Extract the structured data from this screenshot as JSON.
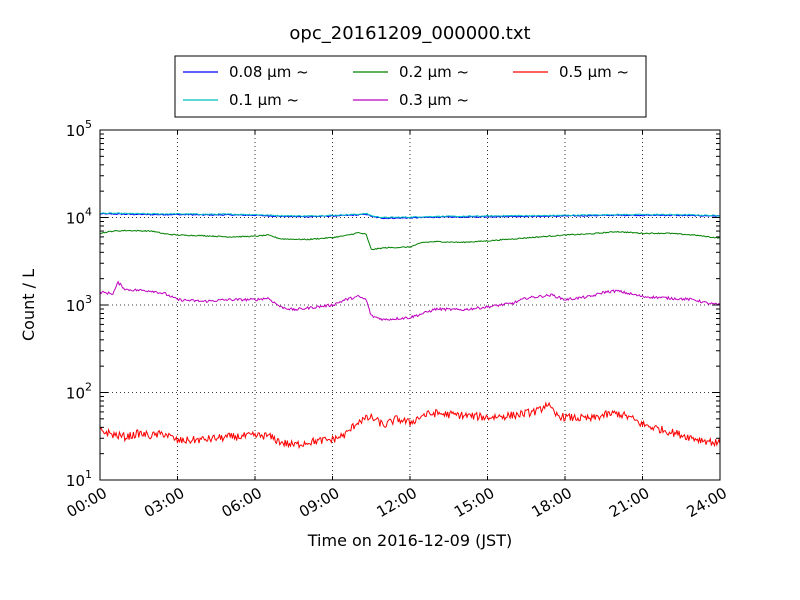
{
  "chart_data": {
    "type": "line",
    "title": "opc_20161209_000000.txt",
    "xlabel": "Time on 2016-12-09 (JST)",
    "ylabel": "Count / L",
    "xlim": [
      0,
      24
    ],
    "ylim": [
      10,
      100000
    ],
    "yscale": "log",
    "grid": true,
    "legend_position": "top-center",
    "x_tick_labels": [
      "00:00",
      "03:00",
      "06:00",
      "09:00",
      "12:00",
      "15:00",
      "18:00",
      "21:00",
      "24:00"
    ],
    "y_tick_labels": [
      {
        "base": "10",
        "exp": "1"
      },
      {
        "base": "10",
        "exp": "2"
      },
      {
        "base": "10",
        "exp": "3"
      },
      {
        "base": "10",
        "exp": "4"
      },
      {
        "base": "10",
        "exp": "5"
      }
    ],
    "series": [
      {
        "name": "0.08 μm ~",
        "color": "#0000ff",
        "points": [
          [
            0,
            11000
          ],
          [
            1,
            10900
          ],
          [
            2,
            10800
          ],
          [
            3,
            10800
          ],
          [
            4,
            10700
          ],
          [
            5,
            10700
          ],
          [
            6,
            10600
          ],
          [
            7,
            10300
          ],
          [
            8,
            10200
          ],
          [
            9,
            10400
          ],
          [
            10,
            10700
          ],
          [
            10.3,
            10900
          ],
          [
            10.6,
            10100
          ],
          [
            11,
            9800
          ],
          [
            12,
            9900
          ],
          [
            13,
            10100
          ],
          [
            14,
            10100
          ],
          [
            15,
            10200
          ],
          [
            16,
            10300
          ],
          [
            17,
            10300
          ],
          [
            18,
            10400
          ],
          [
            19,
            10500
          ],
          [
            20,
            10600
          ],
          [
            21,
            10600
          ],
          [
            22,
            10600
          ],
          [
            23,
            10500
          ],
          [
            24,
            10400
          ]
        ]
      },
      {
        "name": "0.1 μm ~",
        "color": "#00bfbf",
        "points": [
          [
            0,
            11200
          ],
          [
            1,
            11100
          ],
          [
            2,
            11000
          ],
          [
            3,
            11000
          ],
          [
            4,
            10900
          ],
          [
            5,
            10900
          ],
          [
            6,
            10800
          ],
          [
            7,
            10500
          ],
          [
            8,
            10400
          ],
          [
            9,
            10600
          ],
          [
            10,
            10900
          ],
          [
            10.3,
            11100
          ],
          [
            10.6,
            10300
          ],
          [
            11,
            10000
          ],
          [
            12,
            10100
          ],
          [
            13,
            10300
          ],
          [
            14,
            10300
          ],
          [
            15,
            10400
          ],
          [
            16,
            10500
          ],
          [
            17,
            10500
          ],
          [
            18,
            10600
          ],
          [
            19,
            10700
          ],
          [
            20,
            10800
          ],
          [
            21,
            10800
          ],
          [
            22,
            10800
          ],
          [
            23,
            10700
          ],
          [
            24,
            10500
          ]
        ]
      },
      {
        "name": "0.2 μm ~",
        "color": "#008000",
        "points": [
          [
            0,
            6600
          ],
          [
            0.5,
            7000
          ],
          [
            1,
            7100
          ],
          [
            2,
            7000
          ],
          [
            2.5,
            6500
          ],
          [
            3,
            6300
          ],
          [
            4,
            6200
          ],
          [
            5,
            6000
          ],
          [
            6,
            6100
          ],
          [
            6.5,
            6300
          ],
          [
            7,
            5700
          ],
          [
            8,
            5600
          ],
          [
            9,
            5900
          ],
          [
            9.5,
            6200
          ],
          [
            10,
            6700
          ],
          [
            10.3,
            6400
          ],
          [
            10.5,
            4300
          ],
          [
            11,
            4500
          ],
          [
            12,
            4600
          ],
          [
            12.5,
            5200
          ],
          [
            13,
            5300
          ],
          [
            14,
            5200
          ],
          [
            15,
            5400
          ],
          [
            16,
            5700
          ],
          [
            17,
            6000
          ],
          [
            18,
            6300
          ],
          [
            19,
            6500
          ],
          [
            20,
            6900
          ],
          [
            21,
            6600
          ],
          [
            22,
            6600
          ],
          [
            23,
            6300
          ],
          [
            24,
            5800
          ]
        ]
      },
      {
        "name": "0.3 μm ~",
        "color": "#bf00bf",
        "points": [
          [
            0,
            1400
          ],
          [
            0.5,
            1350
          ],
          [
            0.7,
            1800
          ],
          [
            1,
            1500
          ],
          [
            2,
            1450
          ],
          [
            2.5,
            1350
          ],
          [
            3,
            1150
          ],
          [
            4,
            1100
          ],
          [
            5,
            1150
          ],
          [
            6,
            1150
          ],
          [
            6.5,
            1200
          ],
          [
            7,
            950
          ],
          [
            7.5,
            880
          ],
          [
            8,
            920
          ],
          [
            9,
            1000
          ],
          [
            9.5,
            1150
          ],
          [
            10,
            1250
          ],
          [
            10.3,
            1150
          ],
          [
            10.5,
            750
          ],
          [
            11,
            680
          ],
          [
            12,
            720
          ],
          [
            12.5,
            800
          ],
          [
            13,
            900
          ],
          [
            14,
            880
          ],
          [
            15,
            950
          ],
          [
            16,
            1050
          ],
          [
            16.5,
            1200
          ],
          [
            17,
            1250
          ],
          [
            17.5,
            1300
          ],
          [
            18,
            1150
          ],
          [
            19,
            1250
          ],
          [
            19.5,
            1400
          ],
          [
            20,
            1450
          ],
          [
            21,
            1250
          ],
          [
            22,
            1200
          ],
          [
            23,
            1150
          ],
          [
            23.5,
            1050
          ],
          [
            24,
            1000
          ]
        ]
      },
      {
        "name": "0.5 μm ~",
        "color": "#ff0000",
        "points": [
          [
            0,
            37
          ],
          [
            0.5,
            33
          ],
          [
            1,
            31
          ],
          [
            1.5,
            34
          ],
          [
            2,
            32
          ],
          [
            2.5,
            34
          ],
          [
            3,
            28
          ],
          [
            4,
            29
          ],
          [
            5,
            31
          ],
          [
            6,
            32
          ],
          [
            6.5,
            32
          ],
          [
            7,
            27
          ],
          [
            7.5,
            25
          ],
          [
            8,
            27
          ],
          [
            9,
            29
          ],
          [
            9.5,
            33
          ],
          [
            10,
            47
          ],
          [
            10.5,
            52
          ],
          [
            11,
            42
          ],
          [
            11.5,
            50
          ],
          [
            12,
            45
          ],
          [
            12.5,
            55
          ],
          [
            13,
            58
          ],
          [
            13.5,
            56
          ],
          [
            14,
            55
          ],
          [
            15,
            52
          ],
          [
            16,
            55
          ],
          [
            16.5,
            58
          ],
          [
            17,
            62
          ],
          [
            17.3,
            75
          ],
          [
            17.6,
            56
          ],
          [
            18,
            52
          ],
          [
            19,
            50
          ],
          [
            19.5,
            55
          ],
          [
            20,
            58
          ],
          [
            20.5,
            52
          ],
          [
            21,
            43
          ],
          [
            22,
            36
          ],
          [
            23,
            30
          ],
          [
            24,
            26
          ]
        ]
      }
    ]
  }
}
